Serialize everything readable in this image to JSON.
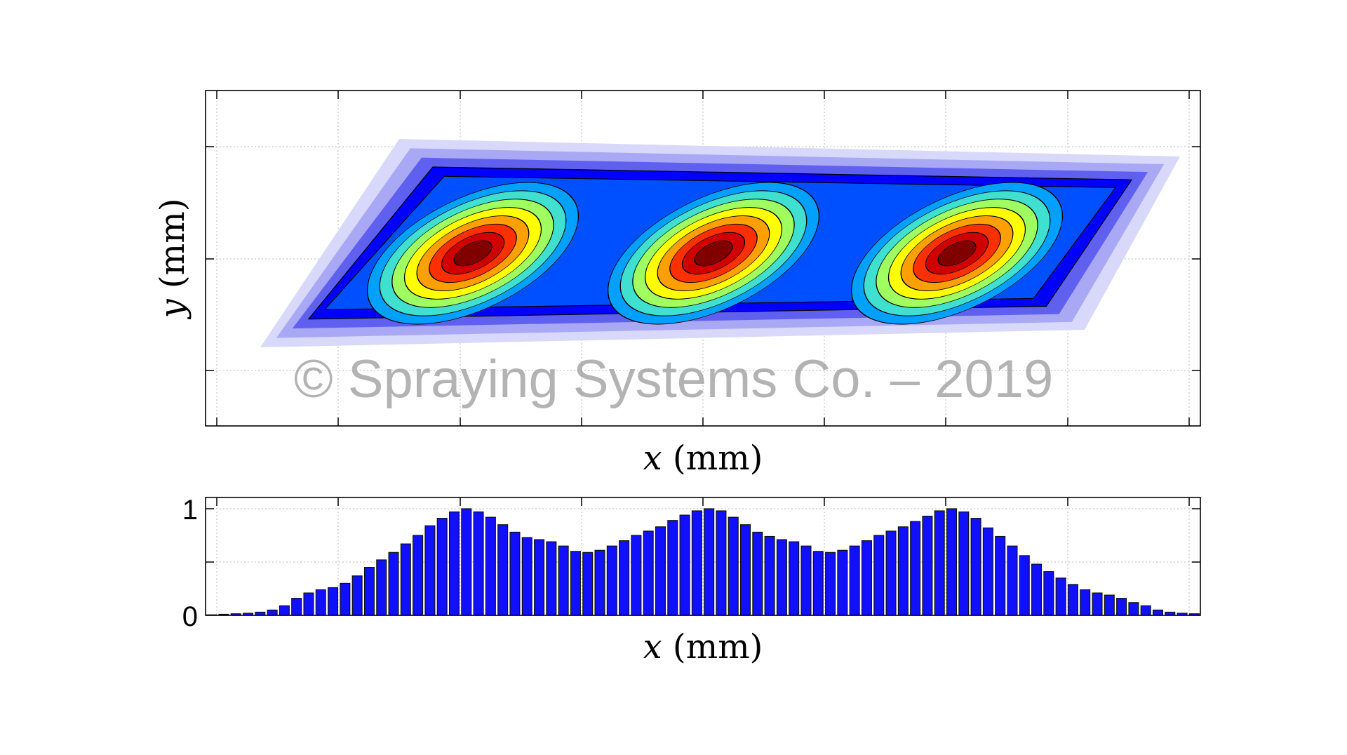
{
  "watermark": "© Spraying Systems Co. – 2019",
  "chart_data": [
    {
      "type": "heatmap",
      "subtype": "filled-contour",
      "xlabel_var": "x",
      "xlabel_unit": "(mm)",
      "ylabel_var": "y",
      "ylabel_unit": "(mm)",
      "grid": true,
      "colormap": "jet",
      "colors": [
        "#d8d8fb",
        "#a8a8f5",
        "#6060f0",
        "#0000ff",
        "#0050ff",
        "#00a0ff",
        "#40e0d0",
        "#a0ff60",
        "#ffff00",
        "#ffa000",
        "#ff3000",
        "#d00000",
        "#800000"
      ],
      "peaks": 3
    },
    {
      "type": "bar",
      "xlabel_var": "x",
      "xlabel_unit": "(mm)",
      "ylim": [
        0,
        1
      ],
      "yticks": [
        "0",
        "1"
      ],
      "grid": true,
      "bar_color": "#1010ff",
      "values": [
        0.005,
        0.01,
        0.015,
        0.02,
        0.03,
        0.05,
        0.09,
        0.16,
        0.21,
        0.24,
        0.26,
        0.3,
        0.37,
        0.45,
        0.52,
        0.59,
        0.67,
        0.75,
        0.84,
        0.91,
        0.97,
        1.0,
        0.97,
        0.92,
        0.85,
        0.78,
        0.73,
        0.71,
        0.69,
        0.65,
        0.6,
        0.59,
        0.61,
        0.65,
        0.7,
        0.75,
        0.79,
        0.83,
        0.89,
        0.94,
        0.98,
        1.0,
        0.98,
        0.92,
        0.85,
        0.78,
        0.74,
        0.71,
        0.69,
        0.65,
        0.6,
        0.59,
        0.61,
        0.65,
        0.7,
        0.75,
        0.79,
        0.83,
        0.88,
        0.93,
        0.98,
        1.0,
        0.97,
        0.91,
        0.82,
        0.74,
        0.65,
        0.56,
        0.48,
        0.41,
        0.35,
        0.29,
        0.24,
        0.21,
        0.19,
        0.16,
        0.12,
        0.09,
        0.05,
        0.03,
        0.02,
        0.015
      ]
    }
  ]
}
